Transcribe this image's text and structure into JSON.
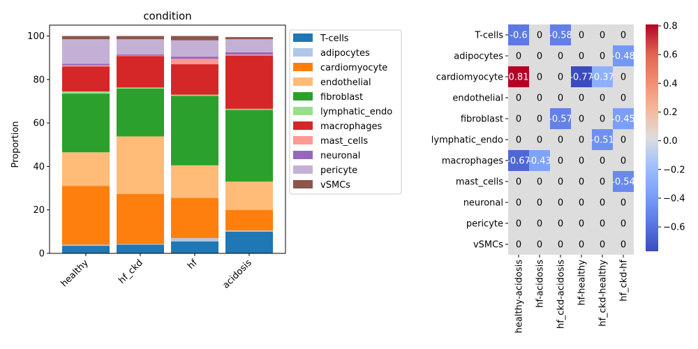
{
  "chart_data": [
    {
      "type": "bar",
      "stacked": true,
      "title": "condition",
      "xlabel": "",
      "ylabel": "Proportion",
      "ylim": [
        0,
        105
      ],
      "yticks": [
        0,
        20,
        40,
        60,
        80,
        100
      ],
      "categories": [
        "healthy",
        "hf_ckd",
        "hf",
        "acidosis"
      ],
      "legend_position": "outside-right",
      "series": [
        {
          "name": "T-cells",
          "color": "#1f77b4",
          "values": [
            3.5,
            4.0,
            5.5,
            10.0
          ]
        },
        {
          "name": "adipocytes",
          "color": "#aec7e8",
          "values": [
            0.5,
            0.3,
            1.5,
            0.5
          ]
        },
        {
          "name": "cardiomyocyte",
          "color": "#ff7f0e",
          "values": [
            27.0,
            23.0,
            18.5,
            9.5
          ]
        },
        {
          "name": "endothelial",
          "color": "#ffbb78",
          "values": [
            15.5,
            26.5,
            15.0,
            13.0
          ]
        },
        {
          "name": "fibroblast",
          "color": "#2ca02c",
          "values": [
            27.0,
            22.0,
            32.0,
            33.0
          ]
        },
        {
          "name": "lymphatic_endo",
          "color": "#98df8a",
          "values": [
            1.0,
            0.5,
            0.5,
            0.5
          ]
        },
        {
          "name": "macrophages",
          "color": "#d62728",
          "values": [
            11.5,
            14.5,
            14.0,
            24.5
          ]
        },
        {
          "name": "mast_cells",
          "color": "#ff9896",
          "values": [
            0.5,
            0.2,
            2.5,
            0.5
          ]
        },
        {
          "name": "neuronal",
          "color": "#9467bd",
          "values": [
            0.7,
            0.5,
            1.0,
            1.0
          ]
        },
        {
          "name": "pericyte",
          "color": "#c5b0d5",
          "values": [
            11.3,
            7.0,
            7.5,
            6.0
          ]
        },
        {
          "name": "vSMCs",
          "color": "#8c564b",
          "values": [
            1.5,
            1.5,
            2.0,
            1.0
          ]
        }
      ]
    },
    {
      "type": "heatmap",
      "title": "",
      "rows": [
        "T-cells",
        "adipocytes",
        "cardiomyocyte",
        "endothelial",
        "fibroblast",
        "lymphatic_endo",
        "macrophages",
        "mast_cells",
        "neuronal",
        "pericyte",
        "vSMCs"
      ],
      "columns": [
        "healthy-acidosis",
        "hf-acidosis",
        "hf_ckd-acidosis",
        "hf-healthy",
        "hf_ckd-healthy",
        "hf_ckd-hf"
      ],
      "values": [
        [
          -0.6,
          0,
          -0.58,
          0,
          0,
          0
        ],
        [
          0,
          0,
          0,
          0,
          0,
          -0.48
        ],
        [
          0.81,
          0,
          0,
          -0.77,
          -0.37,
          0
        ],
        [
          0,
          0,
          0,
          0,
          0,
          0
        ],
        [
          0,
          0,
          -0.57,
          0,
          0,
          -0.45
        ],
        [
          0,
          0,
          0,
          0,
          -0.51,
          0
        ],
        [
          -0.67,
          -0.43,
          0,
          0,
          0,
          0
        ],
        [
          0,
          0,
          0,
          0,
          0,
          -0.54
        ],
        [
          0,
          0,
          0,
          0,
          0,
          0
        ],
        [
          0,
          0,
          0,
          0,
          0,
          0
        ],
        [
          0,
          0,
          0,
          0,
          0,
          0
        ]
      ],
      "labels": [
        [
          "-0.6",
          "0",
          "-0.58",
          "0",
          "0",
          "0"
        ],
        [
          "0",
          "0",
          "0",
          "0",
          "0",
          "-0.48"
        ],
        [
          "0.81",
          "0",
          "0",
          "-0.77",
          "-0.37",
          "0"
        ],
        [
          "0",
          "0",
          "0",
          "0",
          "0",
          "0"
        ],
        [
          "0",
          "0",
          "-0.57",
          "0",
          "0",
          "-0.45"
        ],
        [
          "0",
          "0",
          "0",
          "0",
          "-0.51",
          "0"
        ],
        [
          "-0.67",
          "-0.43",
          "0",
          "0",
          "0",
          "0"
        ],
        [
          "0",
          "0",
          "0",
          "0",
          "0",
          "-0.54"
        ],
        [
          "0",
          "0",
          "0",
          "0",
          "0",
          "0"
        ],
        [
          "0",
          "0",
          "0",
          "0",
          "0",
          "0"
        ],
        [
          "0",
          "0",
          "0",
          "0",
          "0",
          "0"
        ]
      ],
      "zero_color": "#dddddd",
      "colormap": "coolwarm",
      "vmin": -0.77,
      "vmax": 0.81,
      "colorbar_ticks": [
        0.8,
        0.6,
        0.4,
        0.2,
        0.0,
        -0.2,
        -0.4,
        -0.6
      ],
      "colorbar_tick_labels": [
        "0.8",
        "0.6",
        "0.4",
        "0.2",
        "0.0",
        "−0.2",
        "−0.4",
        "−0.6"
      ]
    }
  ]
}
